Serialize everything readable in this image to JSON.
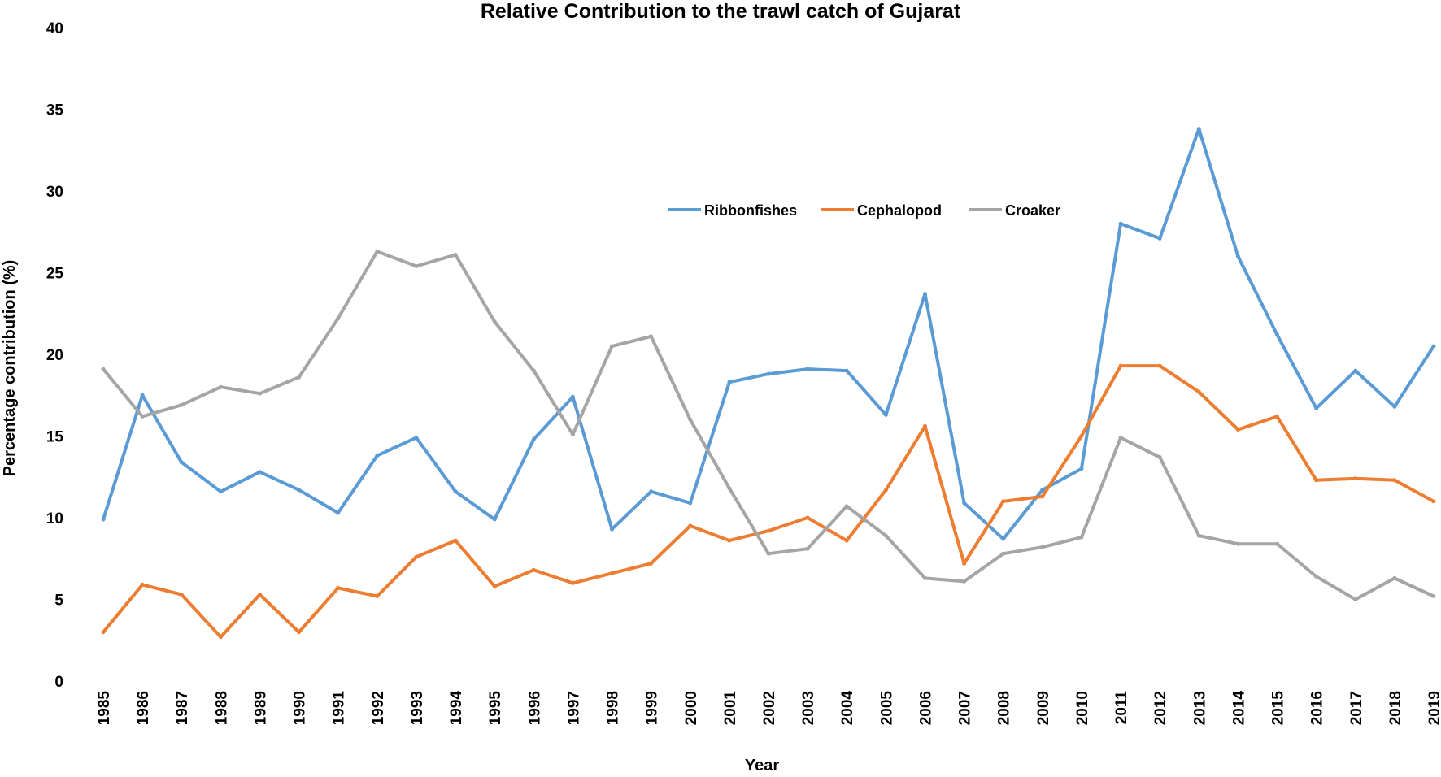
{
  "chart_data": {
    "type": "line",
    "title": "Relative Contribution to the trawl catch of Gujarat",
    "xlabel": "Year",
    "ylabel": "Percentage contribution (%)",
    "ylim": [
      0,
      40
    ],
    "yticks": [
      0,
      5,
      10,
      15,
      20,
      25,
      30,
      35,
      40
    ],
    "grid": false,
    "legend_position": "upper-center",
    "categories": [
      "1985",
      "1986",
      "1987",
      "1988",
      "1989",
      "1990",
      "1991",
      "1992",
      "1993",
      "1994",
      "1995",
      "1996",
      "1997",
      "1998",
      "1999",
      "2000",
      "2001",
      "2002",
      "2003",
      "2004",
      "2005",
      "2006",
      "2007",
      "2008",
      "2009",
      "2010",
      "2011",
      "2012",
      "2013",
      "2014",
      "2015",
      "2016",
      "2017",
      "2018",
      "2019"
    ],
    "series": [
      {
        "name": "Ribbonfishes",
        "color": "#5B9BD5",
        "values": [
          9.9,
          17.5,
          13.4,
          11.6,
          12.8,
          11.7,
          10.3,
          13.8,
          14.9,
          11.6,
          9.9,
          14.8,
          17.4,
          9.3,
          11.6,
          10.9,
          18.3,
          18.8,
          19.1,
          19.0,
          16.3,
          23.7,
          10.9,
          8.7,
          11.7,
          13.0,
          28.0,
          27.1,
          33.8,
          26.0,
          21.2,
          16.7,
          19.0,
          16.8,
          20.5
        ]
      },
      {
        "name": "Cephalopod",
        "color": "#ED7D31",
        "values": [
          3.0,
          5.9,
          5.3,
          2.7,
          5.3,
          3.0,
          5.7,
          5.2,
          7.6,
          8.6,
          5.8,
          6.8,
          6.0,
          6.6,
          7.2,
          9.5,
          8.6,
          9.2,
          10.0,
          8.6,
          11.7,
          15.6,
          7.2,
          11.0,
          11.3,
          15.0,
          19.3,
          19.3,
          17.7,
          15.4,
          16.2,
          12.3,
          12.4,
          12.3,
          11.0
        ]
      },
      {
        "name": "Croaker",
        "color": "#A5A5A5",
        "values": [
          19.1,
          16.2,
          16.9,
          18.0,
          17.6,
          18.6,
          22.2,
          26.3,
          25.4,
          26.1,
          22.0,
          19.0,
          15.1,
          20.5,
          21.1,
          16.0,
          11.8,
          7.8,
          8.1,
          10.7,
          8.9,
          6.3,
          6.1,
          7.8,
          8.2,
          8.8,
          14.9,
          13.7,
          8.9,
          8.4,
          8.4,
          6.4,
          5.0,
          6.3,
          5.2
        ]
      }
    ]
  }
}
